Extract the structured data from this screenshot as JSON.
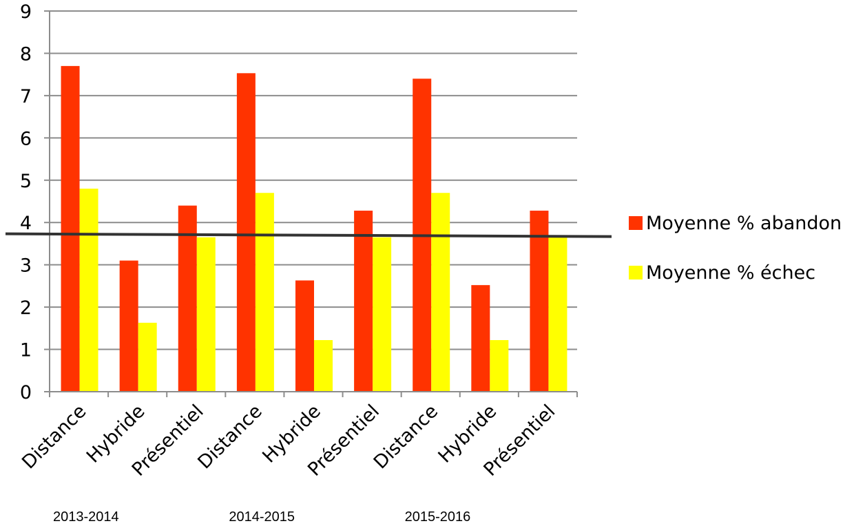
{
  "chart_data": {
    "type": "bar",
    "categories": [
      "Distance",
      "Hybride",
      "Présentiel",
      "Distance",
      "Hybride",
      "Présentiel",
      "Distance",
      "Hybride",
      "Présentiel"
    ],
    "groups": [
      "2013-2014",
      "2014-2015",
      "2015-2016"
    ],
    "series": [
      {
        "name": "Moyenne % abandon",
        "color": "#ff3300",
        "values": [
          7.7,
          3.1,
          4.4,
          7.53,
          2.63,
          4.28,
          7.4,
          2.52,
          4.28
        ]
      },
      {
        "name": "Moyenne % échec",
        "color": "#ffff00",
        "values": [
          4.8,
          1.63,
          3.65,
          4.7,
          1.22,
          3.65,
          4.7,
          1.22,
          3.65
        ]
      }
    ],
    "ylim": [
      0,
      9
    ],
    "yticks": [
      "0",
      "1",
      "2",
      "3",
      "4",
      "5",
      "6",
      "7",
      "8",
      "9"
    ],
    "reference_line": 3.7,
    "grid": true,
    "legend_position": "right",
    "title": "",
    "xlabel": "",
    "ylabel": ""
  }
}
